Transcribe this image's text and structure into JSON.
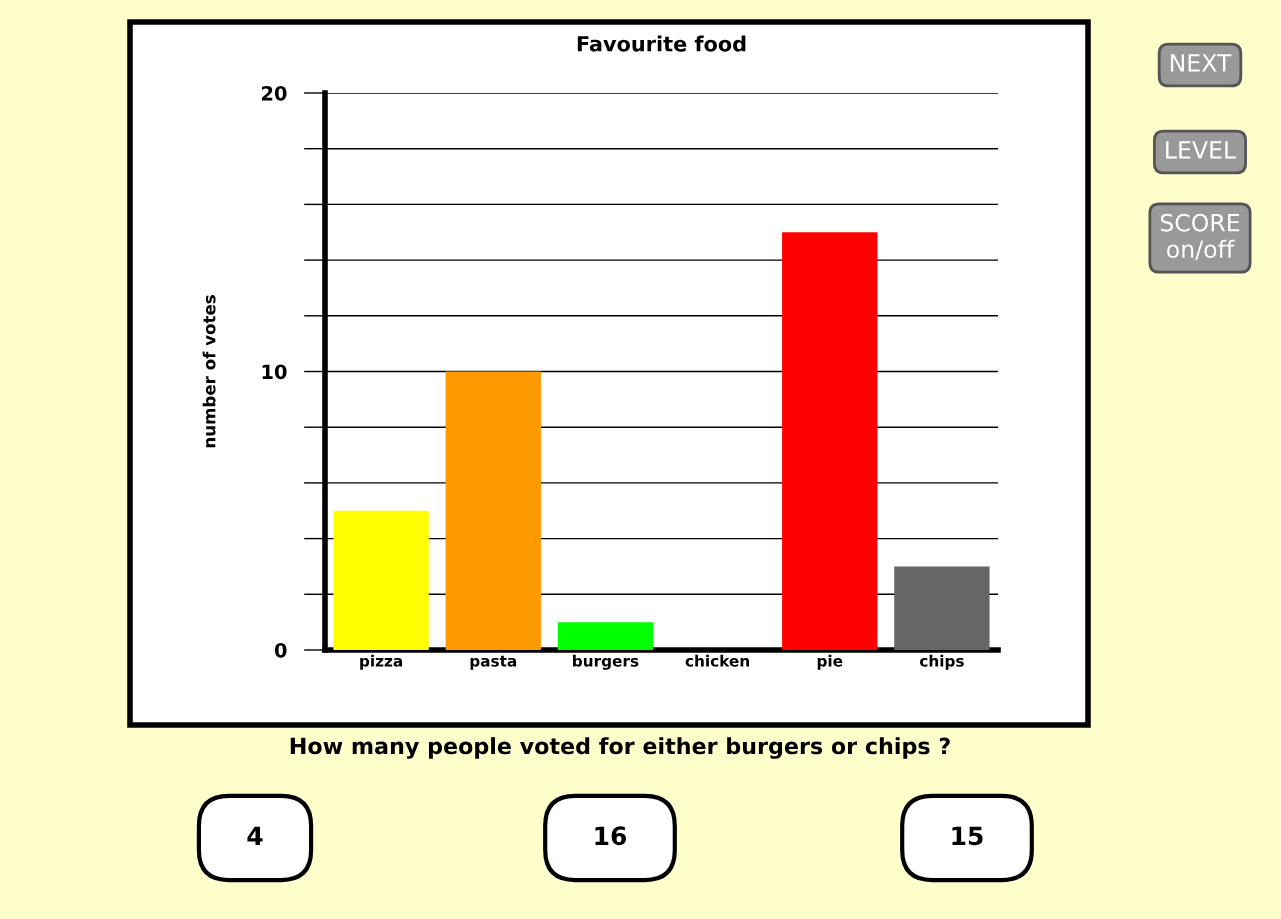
{
  "chart_data": {
    "type": "bar",
    "title": "Favourite food",
    "ylabel": "number of votes",
    "categories": [
      "pizza",
      "pasta",
      "burgers",
      "chicken",
      "pie",
      "chips"
    ],
    "values": [
      5,
      10,
      1,
      0,
      15,
      3
    ],
    "colors": [
      "#ffff00",
      "#ff9900",
      "#00ff00",
      "#3366ff",
      "#ff0000",
      "#666666"
    ],
    "ylim": [
      0,
      20
    ],
    "yticks": [
      0,
      {
        "value": 2,
        "label": null
      },
      {
        "value": 4,
        "label": null
      },
      {
        "value": 6,
        "label": null
      },
      {
        "value": 8,
        "label": null
      },
      10,
      {
        "value": 12,
        "label": null
      },
      {
        "value": 14,
        "label": null
      },
      {
        "value": 16,
        "label": null
      },
      {
        "value": 18,
        "label": null
      },
      20
    ],
    "grid": "y",
    "annotations": [
      "How many people voted for either burgers or chips ?",
      "NEXT",
      "LEVEL",
      "SCORE\non/off",
      "4",
      "16",
      "15"
    ]
  }
}
